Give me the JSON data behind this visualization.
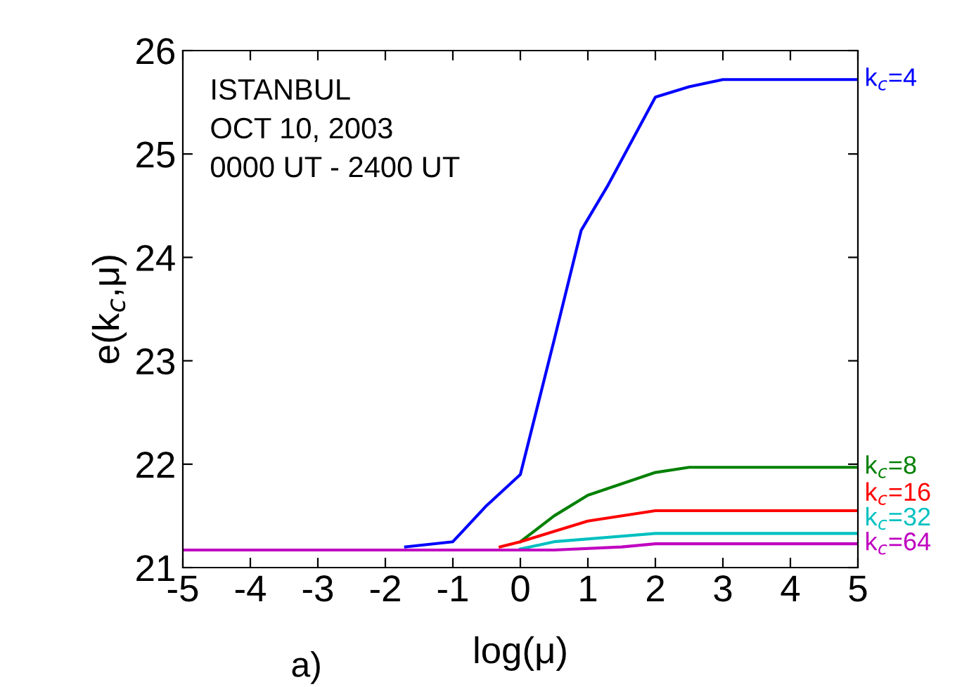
{
  "chart_data": {
    "type": "line",
    "xlabel": "log(μ)",
    "ylabel": "e(k$_{c}$,μ)",
    "xlim": [
      -5,
      5
    ],
    "ylim": [
      21,
      26
    ],
    "xticks": [
      -5,
      -4,
      -3,
      -2,
      -1,
      0,
      1,
      2,
      3,
      4,
      5
    ],
    "yticks": [
      21,
      22,
      23,
      24,
      25,
      26
    ],
    "grid": false,
    "legend": false,
    "marker": "none",
    "line_style": "solid",
    "annotations": [
      "ISTANBUL",
      "OCT 10, 2003",
      "0000 UT - 2400 UT",
      "a)"
    ],
    "series": [
      {
        "name": "k$_{c}$=4",
        "color": "#0000ff",
        "x": [
          -1.7,
          -1,
          -0.5,
          0,
          0.5,
          0.9,
          1.3,
          2,
          2.5,
          3,
          5
        ],
        "values": [
          21.2,
          21.25,
          21.6,
          21.9,
          23.2,
          24.26,
          24.7,
          25.55,
          25.65,
          25.72,
          25.72
        ]
      },
      {
        "name": "k$_{c}$=8",
        "color": "#008000",
        "x": [
          0,
          0.5,
          1,
          2,
          2.5,
          5
        ],
        "values": [
          21.25,
          21.5,
          21.7,
          21.92,
          21.97,
          21.97
        ]
      },
      {
        "name": "k$_{c}$=16",
        "color": "#ff0000",
        "x": [
          -0.3,
          0,
          1,
          2,
          5
        ],
        "values": [
          21.2,
          21.25,
          21.45,
          21.55,
          21.55
        ]
      },
      {
        "name": "k$_{c}$=32",
        "color": "#00c0c0",
        "x": [
          0,
          0.5,
          2,
          5
        ],
        "values": [
          21.18,
          21.25,
          21.33,
          21.33
        ]
      },
      {
        "name": "k$_{c}$=64",
        "color": "#c000c0",
        "x": [
          -5,
          0.5,
          1.5,
          2,
          5
        ],
        "values": [
          21.17,
          21.17,
          21.2,
          21.23,
          21.23
        ]
      }
    ]
  }
}
